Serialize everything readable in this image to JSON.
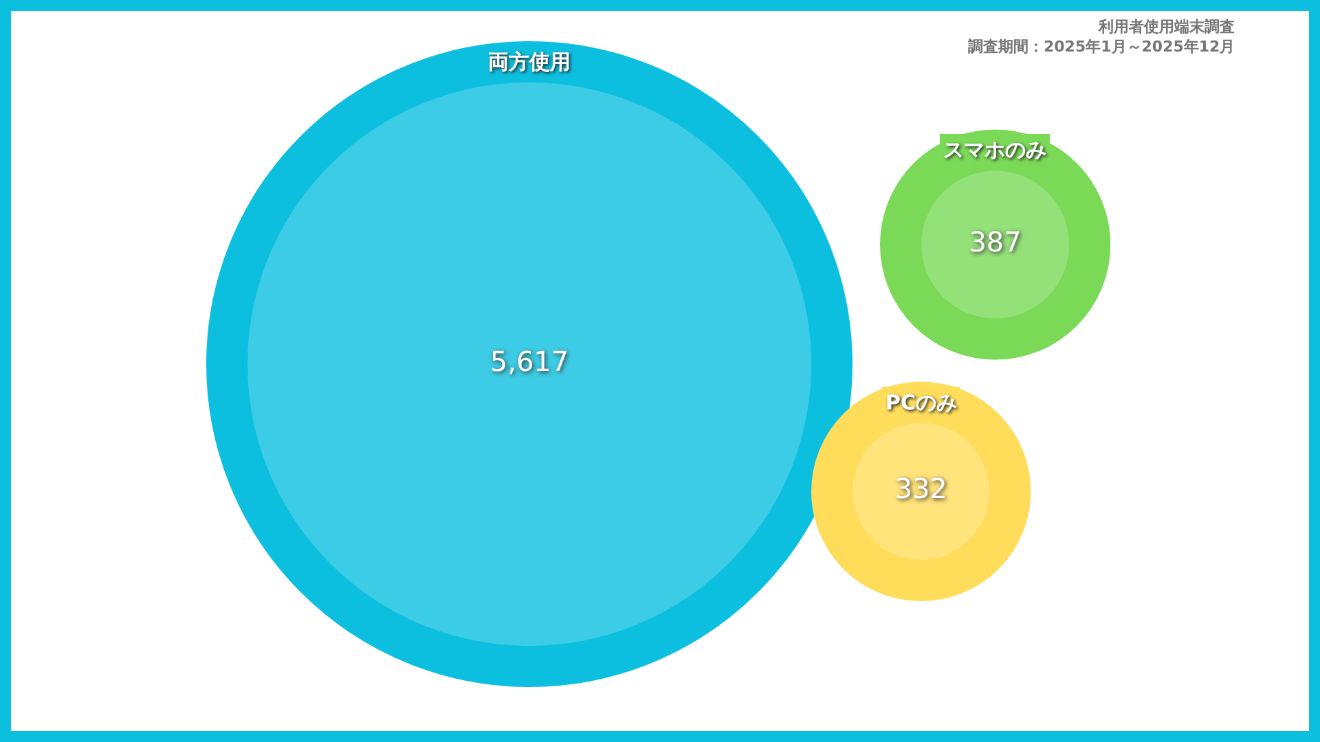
{
  "chart_data": {
    "type": "other",
    "title": "利用者使用端末調査",
    "subtitle": "調査期間：2025年1月～2025年12月",
    "categories": [
      "両方使用",
      "スマホのみ",
      "PCのみ"
    ],
    "values": [
      5617,
      387,
      332
    ],
    "colors": [
      "#0dbfdf",
      "#7ad957",
      "#ffdc5a"
    ],
    "value_labels": [
      "5,617",
      "387",
      "332"
    ]
  }
}
